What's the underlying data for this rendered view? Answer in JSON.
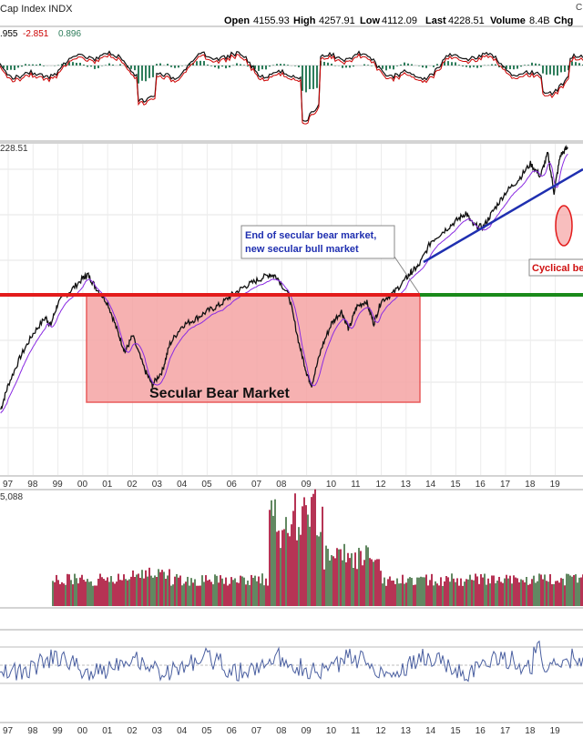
{
  "header": {
    "title": "Cap Index INDX",
    "right_mark": "C",
    "open_label": "Open",
    "open_value": "4155.93",
    "high_label": "High",
    "high_value": "4257.91",
    "low_label": "Low",
    "low_value": "4112.09",
    "last_label": "Last",
    "last_value": "4228.51",
    "volume_label": "Volume",
    "volume_value": "8.4B",
    "chg_label": "Chg"
  },
  "indicator_top": {
    "values": [
      ".955",
      "-2.851",
      "0.896"
    ],
    "colors": [
      "#000000",
      "#cc0000",
      "#2e7d5b"
    ]
  },
  "price_label": "228.51",
  "volume_label": "5,088",
  "annotations": {
    "secular_bear": "Secular Bear Market",
    "callout_line1": "End of secular bear market,",
    "callout_line2": "new secular bull market",
    "cyclical": "Cyclical be"
  },
  "colors": {
    "resistance": "#e31b1b",
    "support": "#1a8a1a",
    "trend": "#1f2fb0",
    "bear_zone_fill": "#f5a3a3",
    "bear_zone_stroke": "#e85a5a",
    "callout_text": "#1f2fb0",
    "cyclical_text": "#d01010",
    "volume_bar": "#a3002a",
    "volume_bar_up": "#3a6b3a",
    "ma_line": "#8a2be2",
    "osc_line": "#4a5fa0"
  },
  "chart_data": {
    "type": "line",
    "x_axis_ticks": [
      "97",
      "98",
      "99",
      "00",
      "01",
      "02",
      "03",
      "04",
      "05",
      "06",
      "07",
      "08",
      "09",
      "10",
      "11",
      "12",
      "13",
      "14",
      "15",
      "16",
      "17",
      "18",
      "19"
    ],
    "x_axis_bottom_ticks": [
      "97",
      "98",
      "99",
      "00",
      "01",
      "02",
      "03",
      "04",
      "05",
      "06",
      "07",
      "08",
      "09",
      "10",
      "11",
      "12",
      "13",
      "14",
      "15",
      "16",
      "17",
      "18",
      "19"
    ],
    "price_series": {
      "x": [
        1996.7,
        1997.0,
        1997.5,
        1998.0,
        1998.5,
        1998.7,
        1999.0,
        1999.5,
        2000.0,
        2000.2,
        2000.5,
        2001.0,
        2001.4,
        2001.7,
        2002.0,
        2002.5,
        2002.8,
        2003.2,
        2003.5,
        2004.0,
        2004.5,
        2005.0,
        2005.5,
        2006.0,
        2006.5,
        2007.0,
        2007.5,
        2007.8,
        2008.3,
        2008.7,
        2009.0,
        2009.2,
        2009.6,
        2010.0,
        2010.4,
        2010.7,
        2011.0,
        2011.4,
        2011.7,
        2012.0,
        2012.5,
        2013.0,
        2013.2,
        2013.5,
        2014.0,
        2014.5,
        2015.0,
        2015.4,
        2015.7,
        2016.1,
        2016.5,
        2017.0,
        2017.5,
        2018.0,
        2018.4,
        2018.7,
        2018.95,
        2019.2,
        2019.5
      ],
      "y": [
        0.0,
        0.12,
        0.26,
        0.37,
        0.45,
        0.41,
        0.52,
        0.58,
        0.64,
        0.66,
        0.6,
        0.52,
        0.38,
        0.28,
        0.36,
        0.19,
        0.12,
        0.19,
        0.32,
        0.41,
        0.44,
        0.48,
        0.51,
        0.56,
        0.6,
        0.63,
        0.66,
        0.65,
        0.55,
        0.32,
        0.18,
        0.12,
        0.3,
        0.42,
        0.48,
        0.39,
        0.5,
        0.53,
        0.42,
        0.53,
        0.57,
        0.64,
        0.67,
        0.7,
        0.82,
        0.87,
        0.92,
        0.96,
        0.9,
        0.89,
        0.97,
        1.06,
        1.12,
        1.2,
        1.14,
        1.25,
        1.06,
        1.24,
        1.28
      ]
    },
    "volume_note": "volume bars visible from 1999 onward, peaking in late 2008",
    "grid": true
  }
}
